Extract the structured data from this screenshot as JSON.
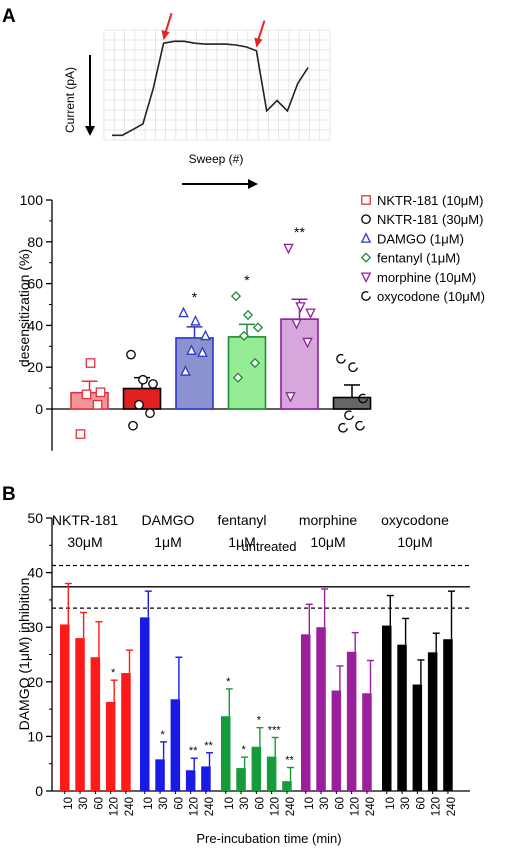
{
  "panel_labels": {
    "a": "A",
    "b": "B"
  },
  "chart_data": [
    {
      "type": "line",
      "panel": "A-trace",
      "xlabel": "Sweep (#)",
      "ylabel": "Current (pA)",
      "x": [
        0,
        1,
        2,
        3,
        4,
        5,
        6,
        7,
        8,
        9,
        10,
        11,
        12,
        13,
        14,
        15,
        16,
        17,
        18,
        19
      ],
      "y": [
        0.0,
        0.0,
        0.06,
        0.12,
        0.5,
        0.98,
        1.0,
        1.0,
        0.98,
        0.97,
        0.97,
        0.97,
        0.96,
        0.94,
        0.9,
        0.26,
        0.37,
        0.26,
        0.55,
        0.72
      ],
      "ylim": [
        -0.05,
        1.12
      ],
      "markers": [
        5,
        14
      ],
      "grid": true
    },
    {
      "type": "bar",
      "panel": "A-bar",
      "ylabel": "desensitization (%)",
      "ylim": [
        -20,
        100
      ],
      "yticks": [
        "0",
        "20",
        "40",
        "60",
        "80",
        "100"
      ],
      "legend_position": "right",
      "series": [
        {
          "name": "NKTR-181 (10μM)",
          "mean": 7.8,
          "sem": 5.5,
          "color": "#e3323a",
          "fill": "#f3949a",
          "marker": "square",
          "points": [
            -12,
            2,
            7,
            8,
            22
          ],
          "sig": ""
        },
        {
          "name": "NKTR-181 (30μM)",
          "mean": 9.8,
          "sem": 5.2,
          "color": "#000000",
          "fill": "#e31f1f",
          "marker": "circle",
          "points": [
            -8,
            -2,
            2,
            12,
            14,
            26
          ],
          "sig": ""
        },
        {
          "name": "DAMGO (1μM)",
          "mean": 34.0,
          "sem": 5.3,
          "color": "#2b38c9",
          "fill": "#8b92cf",
          "marker": "triangle",
          "points": [
            18,
            27,
            28,
            35,
            42,
            46
          ],
          "sig": "*"
        },
        {
          "name": "fentanyl (1μM)",
          "mean": 34.5,
          "sem": 6.0,
          "color": "#1e8a3a",
          "fill": "#95ec95",
          "marker": "diamond",
          "points": [
            15,
            22,
            35,
            39,
            45,
            54
          ],
          "sig": "*"
        },
        {
          "name": "morphine (10μM)",
          "mean": 43.0,
          "sem": 9.5,
          "color": "#8f1f9a",
          "fill": "#d7a6dd",
          "marker": "triangle-down",
          "points": [
            6,
            32,
            41,
            46,
            49,
            77
          ],
          "sig": "**"
        },
        {
          "name": "oxycodone (10μM)",
          "mean": 5.5,
          "sem": 6.0,
          "color": "#000000",
          "fill": "#666666",
          "marker": "circle-open",
          "points": [
            -9,
            -8,
            -3,
            5,
            20,
            24
          ],
          "sig": ""
        }
      ]
    },
    {
      "type": "bar",
      "panel": "B",
      "ylabel": "DAMGO (1μM) inhibition",
      "xlabel": "Pre-incubation time (min)",
      "ylim": [
        0,
        50
      ],
      "yticks": [
        "0",
        "10",
        "20",
        "30",
        "40",
        "50"
      ],
      "categories": [
        "10",
        "30",
        "60",
        "120",
        "240"
      ],
      "reference": {
        "label": "untreated",
        "mean": 37.4,
        "lower": 33.5,
        "upper": 41.3
      },
      "groups": [
        {
          "name": "NKTR-181",
          "conc": "30μM",
          "color": "#ff1a1a",
          "values": [
            30.5,
            28,
            24.5,
            16.3,
            21.6
          ],
          "errors": [
            7.5,
            4.7,
            6.5,
            4,
            4.2
          ],
          "sig": [
            "",
            "",
            "",
            "*",
            ""
          ]
        },
        {
          "name": "DAMGO",
          "conc": "1μM",
          "color": "#1a1ae6",
          "values": [
            31.8,
            5.8,
            16.8,
            3.8,
            4.5
          ],
          "errors": [
            4.8,
            3.2,
            7.7,
            2.2,
            2.5
          ],
          "sig": [
            "",
            "*",
            "",
            "**",
            "**"
          ]
        },
        {
          "name": "fentanyl",
          "conc": "1μM",
          "color": "#169b3a",
          "values": [
            13.7,
            4.2,
            8.1,
            6.3,
            1.8
          ],
          "errors": [
            5,
            2,
            3.5,
            3.5,
            2.5
          ],
          "sig": [
            "*",
            "*",
            "*",
            "***",
            "**"
          ]
        },
        {
          "name": "morphine",
          "conc": "10μM",
          "color": "#9b1f9b",
          "values": [
            28.7,
            30,
            18.4,
            25.5,
            17.9
          ],
          "errors": [
            5.5,
            7,
            4.5,
            3.5,
            6
          ],
          "sig": [
            "",
            "",
            "",
            "",
            ""
          ]
        },
        {
          "name": "oxycodone",
          "conc": "10μM",
          "color": "#000000",
          "values": [
            30.3,
            26.8,
            19.5,
            25.4,
            27.8
          ],
          "errors": [
            5.5,
            4.8,
            4.5,
            3.5,
            8.8
          ],
          "sig": [
            "",
            "",
            "",
            "",
            ""
          ]
        }
      ]
    }
  ]
}
